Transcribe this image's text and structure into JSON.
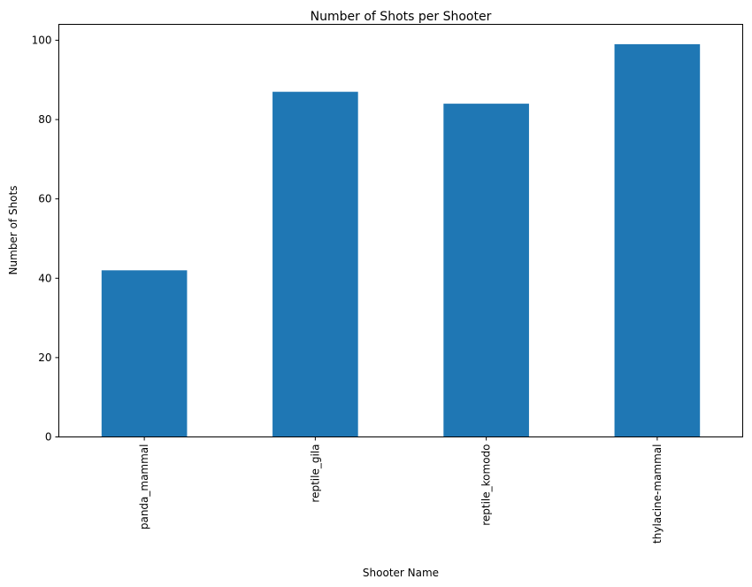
{
  "chart_data": {
    "type": "bar",
    "title": "Number of Shots per Shooter",
    "xlabel": "Shooter Name",
    "ylabel": "Number of Shots",
    "categories": [
      "panda_mammal",
      "reptile_gila",
      "reptile_komodo",
      "thylacine-mammal"
    ],
    "values": [
      42,
      87,
      84,
      99
    ],
    "ylim": [
      0,
      104
    ],
    "yticks": [
      0,
      20,
      40,
      60,
      80,
      100
    ],
    "grid": false,
    "legend": "none",
    "bar_color": "#1f77b4"
  }
}
